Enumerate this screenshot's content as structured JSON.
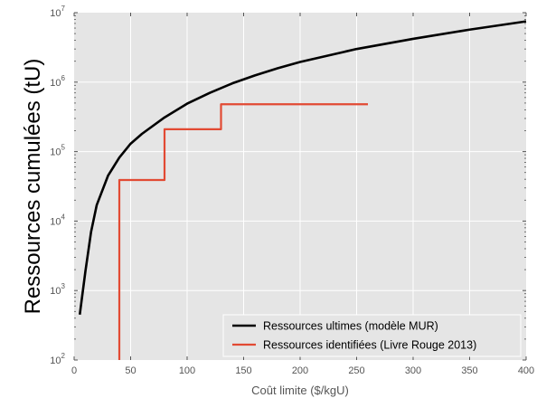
{
  "chart_data": {
    "type": "line",
    "xlabel": "Coût limite ($/kgU)",
    "ylabel": "Ressources cumulées (tU)",
    "xlim": [
      0,
      400
    ],
    "ylim": [
      100,
      10000000
    ],
    "y_scale": "log",
    "grid": true,
    "legend_position": "lower-right",
    "x_ticks": [
      0,
      50,
      100,
      150,
      200,
      250,
      300,
      350,
      400
    ],
    "y_ticks": [
      {
        "value": 100,
        "base": "10",
        "exp": "2"
      },
      {
        "value": 1000,
        "base": "10",
        "exp": "3"
      },
      {
        "value": 10000,
        "base": "10",
        "exp": "4"
      },
      {
        "value": 100000,
        "base": "10",
        "exp": "5"
      },
      {
        "value": 1000000,
        "base": "10",
        "exp": "6"
      },
      {
        "value": 10000000,
        "base": "10",
        "exp": "7"
      }
    ],
    "series": [
      {
        "name": "Ressources ultimes (modèle MUR)",
        "color": "#000000",
        "style": "line",
        "x": [
          5,
          10,
          15,
          20,
          30,
          40,
          50,
          60,
          80,
          100,
          120,
          140,
          160,
          180,
          200,
          250,
          300,
          350,
          400
        ],
        "y": [
          450,
          1900,
          7000,
          17000,
          45000,
          82000,
          130000,
          180000,
          310000,
          490000,
          700000,
          960000,
          1250000,
          1580000,
          1950000,
          3000000,
          4200000,
          5700000,
          7500000
        ]
      },
      {
        "name": "Ressources identifiées (Livre Rouge 2013)",
        "color": "#e24a33",
        "style": "step",
        "x": [
          40,
          40,
          80,
          80,
          130,
          130,
          260
        ],
        "y": [
          100,
          39000,
          39000,
          210000,
          210000,
          480000,
          480000
        ]
      }
    ]
  }
}
